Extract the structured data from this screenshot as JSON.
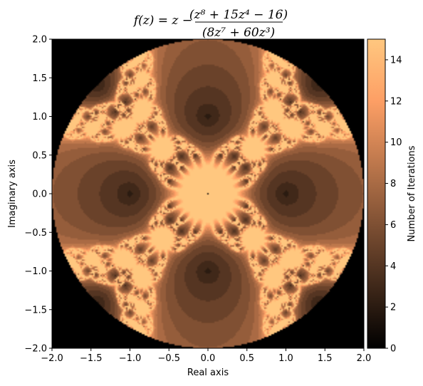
{
  "chart_data": {
    "type": "heatmap",
    "title": {
      "lhs": "f(z) = z −",
      "numerator": "(z⁸ + 15z⁴ − 16)",
      "denominator": "(8z⁷ + 60z³)"
    },
    "xlabel": "Real axis",
    "ylabel": "Imaginary axis",
    "xlim": [
      -2.0,
      2.0
    ],
    "ylim": [
      -2.0,
      2.0
    ],
    "x_ticks": [
      "−2.0",
      "−1.5",
      "−1.0",
      "−0.5",
      "0.0",
      "0.5",
      "1.0",
      "1.5",
      "2.0"
    ],
    "y_ticks": [
      "−2.0",
      "−1.5",
      "−1.0",
      "−0.5",
      "0.0",
      "0.5",
      "1.0",
      "1.5",
      "2.0"
    ],
    "x_tick_values": [
      -2.0,
      -1.5,
      -1.0,
      -0.5,
      0.0,
      0.5,
      1.0,
      1.5,
      2.0
    ],
    "y_tick_values": [
      -2.0,
      -1.5,
      -1.0,
      -0.5,
      0.0,
      0.5,
      1.0,
      1.5,
      2.0
    ],
    "region": "disk of radius 2",
    "outside_value": 0,
    "max_iterations": 15,
    "colormap": "copper",
    "colorbar": {
      "label": "Number of Iterations",
      "min": 0,
      "max": 15,
      "ticks": [
        0,
        2,
        4,
        6,
        8,
        10,
        12,
        14
      ],
      "tick_labels": [
        "0",
        "2",
        "4",
        "6",
        "8",
        "10",
        "12",
        "14"
      ]
    },
    "colors": {
      "cmap_low": "#000000",
      "cmap_high": "#ffc77f",
      "background": "#000000"
    },
    "grid": false
  }
}
